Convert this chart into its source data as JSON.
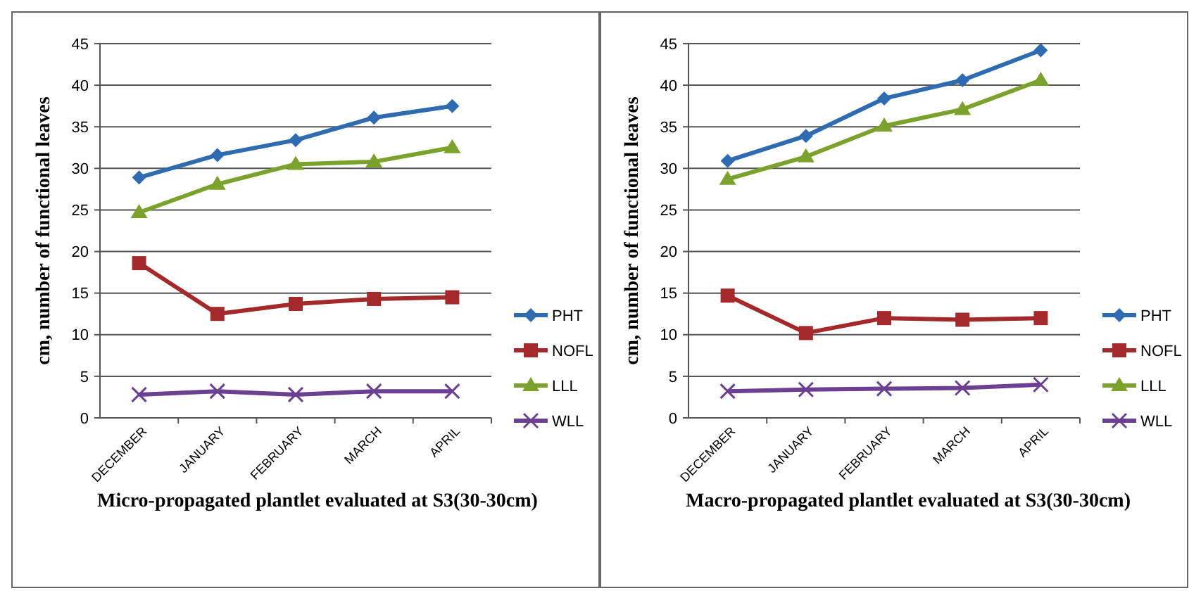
{
  "chart_data": [
    {
      "type": "line",
      "xlabel": "Micro-propagated plantlet evaluated at S3(30-30cm)",
      "ylabel": "cm, number of functional leaves",
      "categories": [
        "DECEMBER",
        "JANUARY",
        "FEBRUARY",
        "MARCH",
        "APRIL"
      ],
      "ylim": [
        0,
        45
      ],
      "yticks": [
        0,
        5,
        10,
        15,
        20,
        25,
        30,
        35,
        40,
        45
      ],
      "grid": "y",
      "legend": "right",
      "series": [
        {
          "name": "PHT",
          "color": "#2e6bb0",
          "marker": "diamond",
          "values": [
            28.9,
            31.6,
            33.4,
            36.1,
            37.5
          ]
        },
        {
          "name": "NOFL",
          "color": "#a3292a",
          "marker": "square",
          "values": [
            18.6,
            12.5,
            13.7,
            14.3,
            14.5
          ]
        },
        {
          "name": "LLL",
          "color": "#7ba22c",
          "marker": "triangle",
          "values": [
            24.7,
            28.1,
            30.5,
            30.8,
            32.5
          ]
        },
        {
          "name": "WLL",
          "color": "#6b3f91",
          "marker": "cross",
          "values": [
            2.8,
            3.2,
            2.8,
            3.2,
            3.2
          ]
        }
      ]
    },
    {
      "type": "line",
      "xlabel": "Macro-propagated plantlet evaluated at S3(30-30cm)",
      "ylabel": "cm, number of functional leaves",
      "categories": [
        "DECEMBER",
        "JANUARY",
        "FEBRUARY",
        "MARCH",
        "APRIL"
      ],
      "ylim": [
        0,
        45
      ],
      "yticks": [
        0,
        5,
        10,
        15,
        20,
        25,
        30,
        35,
        40,
        45
      ],
      "grid": "y",
      "legend": "right",
      "series": [
        {
          "name": "PHT",
          "color": "#2e6bb0",
          "marker": "diamond",
          "values": [
            30.9,
            33.9,
            38.4,
            40.6,
            44.2
          ]
        },
        {
          "name": "NOFL",
          "color": "#a3292a",
          "marker": "square",
          "values": [
            14.7,
            10.2,
            12.0,
            11.8,
            12.0
          ]
        },
        {
          "name": "LLL",
          "color": "#7ba22c",
          "marker": "triangle",
          "values": [
            28.7,
            31.4,
            35.1,
            37.1,
            40.6
          ]
        },
        {
          "name": "WLL",
          "color": "#6b3f91",
          "marker": "cross",
          "values": [
            3.2,
            3.4,
            3.5,
            3.6,
            4.0
          ]
        }
      ]
    }
  ]
}
